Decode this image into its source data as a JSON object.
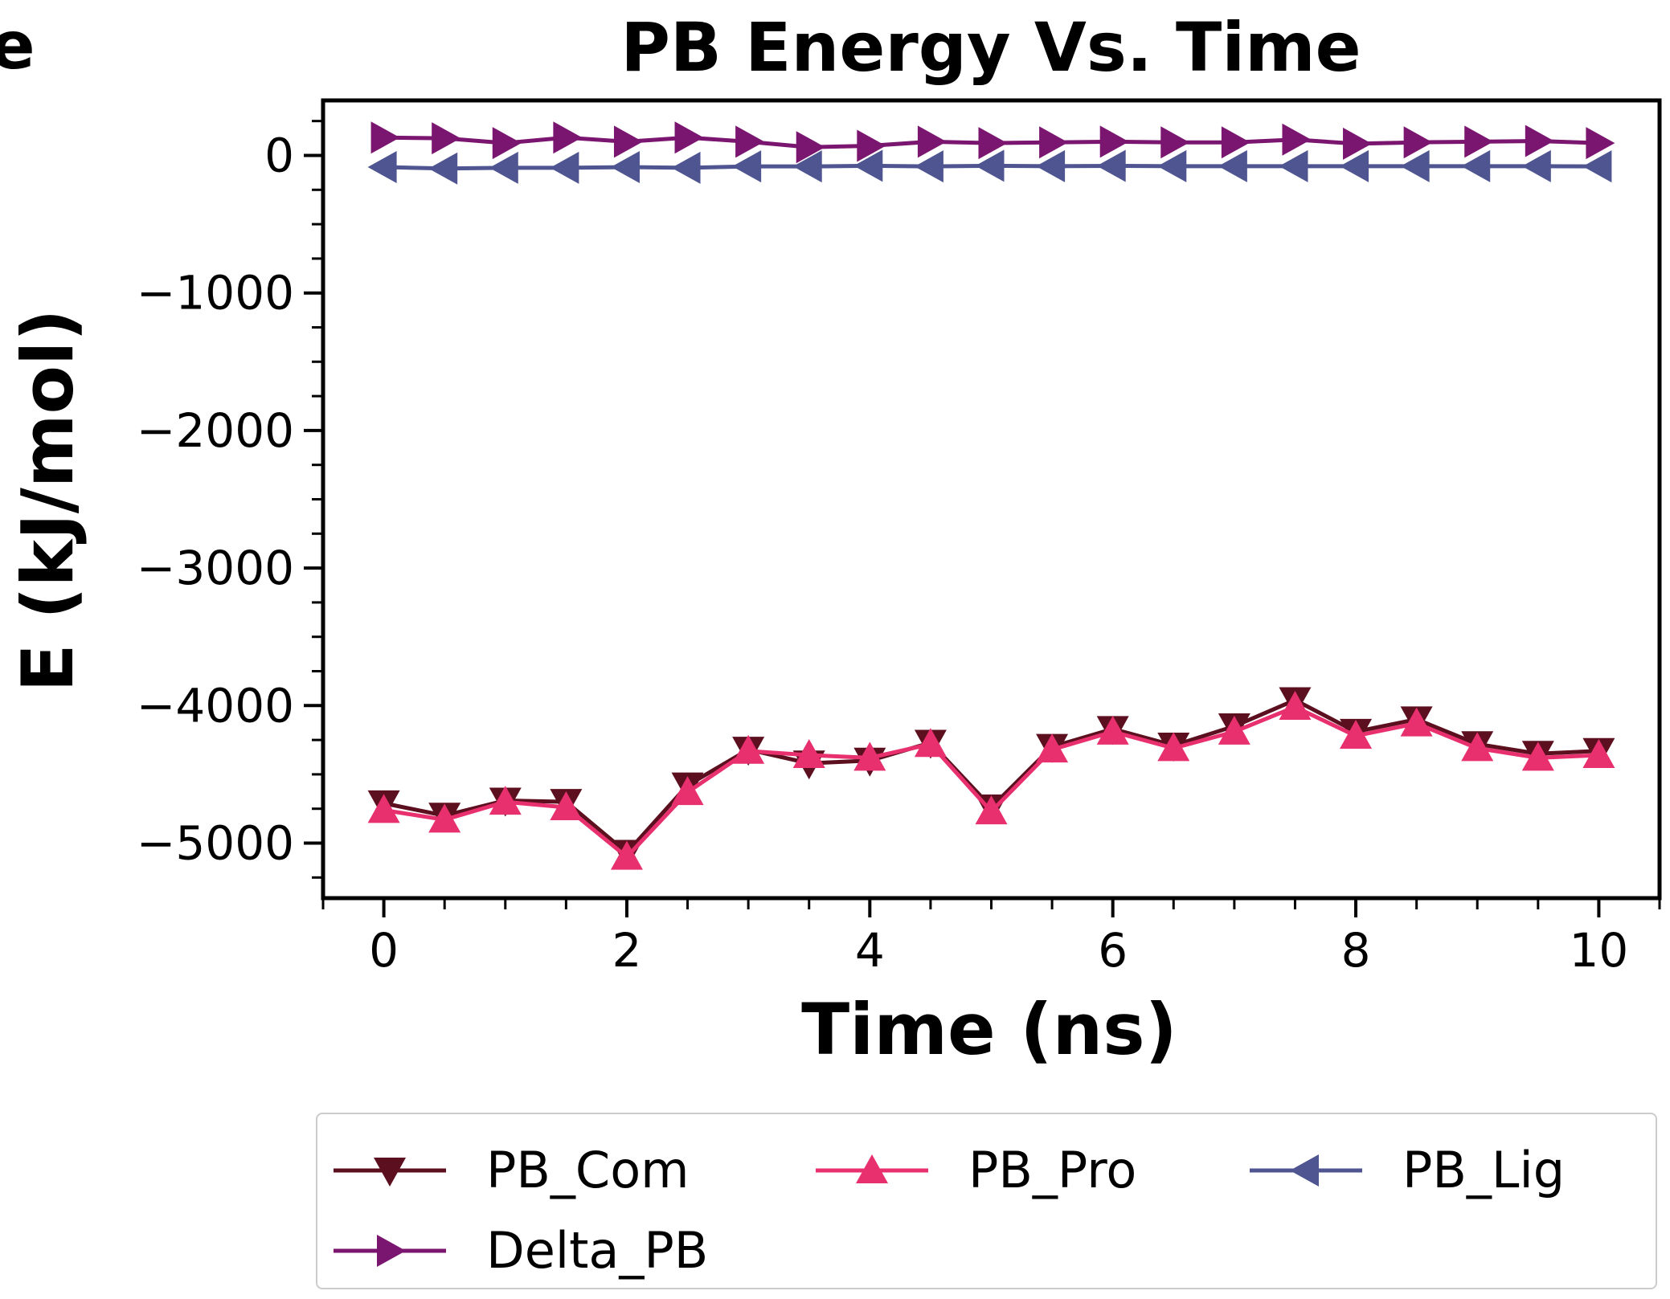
{
  "chart_data": {
    "type": "line",
    "title": "PB Energy Vs. Time",
    "edge_text": "e",
    "xlabel": "Time (ns)",
    "ylabel": "E (kJ/mol)",
    "xlim": [
      -0.5,
      10.5
    ],
    "ylim": [
      -5400,
      400
    ],
    "xticks": [
      0,
      2,
      4,
      6,
      8,
      10
    ],
    "xtick_labels": [
      "0",
      "2",
      "4",
      "6",
      "8",
      "10"
    ],
    "yticks": [
      0,
      -1000,
      -2000,
      -3000,
      -4000,
      -5000
    ],
    "ytick_labels": [
      "0",
      "−1000",
      "−2000",
      "−3000",
      "−4000",
      "−5000"
    ],
    "x": [
      0,
      0.5,
      1,
      1.5,
      2,
      2.5,
      3,
      3.5,
      4,
      4.5,
      5,
      5.5,
      6,
      6.5,
      7,
      7.5,
      8,
      8.5,
      9,
      9.5,
      10
    ],
    "series": [
      {
        "name": "PB_Com",
        "color": "#5c0f1e",
        "marker": "triangle-down",
        "values": [
          -4710,
          -4800,
          -4690,
          -4700,
          -5070,
          -4580,
          -4320,
          -4420,
          -4400,
          -4270,
          -4740,
          -4300,
          -4170,
          -4290,
          -4150,
          -3960,
          -4190,
          -4100,
          -4280,
          -4350,
          -4330
        ]
      },
      {
        "name": "PB_Pro",
        "color": "#e8306e",
        "marker": "triangle-up",
        "values": [
          -4760,
          -4830,
          -4700,
          -4740,
          -5100,
          -4630,
          -4330,
          -4360,
          -4380,
          -4280,
          -4770,
          -4320,
          -4190,
          -4310,
          -4190,
          -4010,
          -4220,
          -4130,
          -4310,
          -4380,
          -4360
        ]
      },
      {
        "name": "PB_Lig",
        "color": "#4f5590",
        "marker": "triangle-left",
        "values": [
          -85,
          -95,
          -90,
          -90,
          -85,
          -90,
          -80,
          -80,
          -75,
          -80,
          -75,
          -78,
          -76,
          -78,
          -78,
          -78,
          -78,
          -78,
          -78,
          -78,
          -80
        ]
      },
      {
        "name": "Delta_PB",
        "color": "#7b1670",
        "marker": "triangle-right",
        "values": [
          130,
          125,
          90,
          130,
          100,
          130,
          100,
          60,
          70,
          100,
          90,
          95,
          100,
          95,
          95,
          115,
          85,
          95,
          100,
          105,
          90
        ]
      }
    ],
    "legend": {
      "placement": "bottom-center",
      "columns": 3
    },
    "grid": false
  }
}
